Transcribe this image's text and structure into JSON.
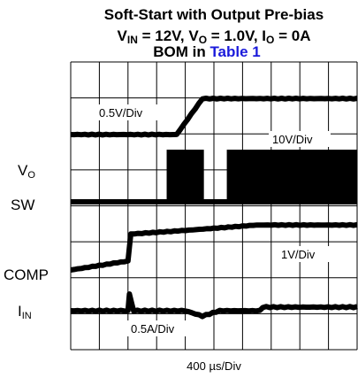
{
  "title": {
    "line1": "Soft-Start with Output Pre-bias",
    "line2_parts": [
      {
        "text": "V",
        "sub": false
      },
      {
        "text": "IN",
        "sub": true
      },
      {
        "text": " = 12V, V",
        "sub": false
      },
      {
        "text": "O",
        "sub": true
      },
      {
        "text": " = 1.0V, I",
        "sub": false
      },
      {
        "text": "O",
        "sub": true
      },
      {
        "text": " = 0A",
        "sub": false
      }
    ],
    "line3_prefix": "BOM in ",
    "line3_link": "Table 1"
  },
  "channels": {
    "vo": {
      "main": "V",
      "sub": "O"
    },
    "sw": {
      "main": "SW"
    },
    "comp": {
      "main": "COMP"
    },
    "iin": {
      "main": "I",
      "sub": "IN"
    }
  },
  "scales": {
    "vo": "0.5V/Div",
    "sw": "10V/Div",
    "comp": "1V/Div",
    "iin": "0.5A/Div"
  },
  "timebase": "400 µs/Div",
  "chart_data": {
    "type": "line",
    "title": "Soft-Start with Output Pre-bias",
    "xlabel": "400 µs/Div",
    "x_divisions": 10,
    "y_divisions": 8,
    "grid": true,
    "series": [
      {
        "name": "V_O",
        "scale": "0.5V/Div",
        "points": [
          [
            0,
            0
          ],
          [
            3.7,
            0
          ],
          [
            4.6,
            1.0
          ],
          [
            10,
            1.0
          ]
        ]
      },
      {
        "name": "SW",
        "scale": "10V/Div",
        "bursts": [
          [
            3.35,
            4.65
          ],
          [
            5.45,
            10
          ]
        ],
        "burst_height_div": 1.45
      },
      {
        "name": "COMP",
        "scale": "1V/Div",
        "points": [
          [
            0,
            0
          ],
          [
            2.0,
            0.25
          ],
          [
            2.1,
            1.0
          ],
          [
            4.0,
            1.1
          ],
          [
            6.5,
            1.25
          ],
          [
            10,
            1.25
          ]
        ]
      },
      {
        "name": "I_IN",
        "scale": "0.5A/Div",
        "points": [
          [
            0,
            0
          ],
          [
            2.0,
            0
          ],
          [
            2.05,
            0.45
          ],
          [
            2.2,
            0
          ],
          [
            4.0,
            0
          ],
          [
            4.6,
            -0.15
          ],
          [
            5.2,
            0
          ],
          [
            6.6,
            0
          ],
          [
            6.7,
            0.1
          ],
          [
            10,
            0.1
          ]
        ]
      }
    ]
  }
}
